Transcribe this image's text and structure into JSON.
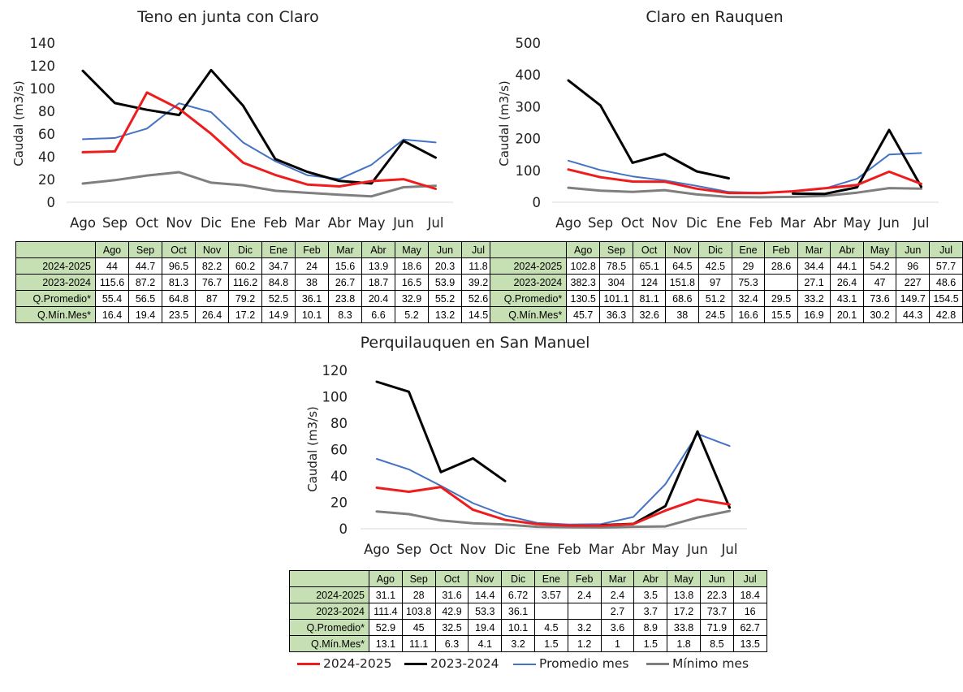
{
  "months": [
    "Ago",
    "Sep",
    "Oct",
    "Nov",
    "Dic",
    "Ene",
    "Feb",
    "Mar",
    "Abr",
    "May",
    "Jun",
    "Jul"
  ],
  "row_labels": [
    "2024-2025",
    "2023-2024",
    "Q.Promedio*",
    "Q.Mín.Mes*"
  ],
  "legend": {
    "s2425": "2024-2025",
    "s2324": "2023-2024",
    "prom": "Promedio mes",
    "min": "Mínimo mes"
  },
  "colors": {
    "s2425": "#ee1c1c",
    "s2324": "#000000",
    "prom": "#4472c4",
    "min": "#7f7f7f",
    "header_bg": "#c6e0b4"
  },
  "chart_data": [
    {
      "type": "line",
      "title": "Teno en junta con Claro",
      "ylabel": "Caudal (m3/s)",
      "ylim": [
        0,
        140
      ],
      "yticks": [
        0,
        20,
        40,
        60,
        80,
        100,
        120,
        140
      ],
      "categories": [
        "Ago",
        "Sep",
        "Oct",
        "Nov",
        "Dic",
        "Ene",
        "Feb",
        "Mar",
        "Abr",
        "May",
        "Jun",
        "Jul"
      ],
      "grid": false,
      "series": [
        {
          "name": "2024-2025",
          "values": [
            44,
            44.7,
            96.5,
            82.2,
            60.2,
            34.7,
            24,
            15.6,
            13.9,
            18.6,
            20.3,
            11.8
          ]
        },
        {
          "name": "2023-2024",
          "values": [
            115.6,
            87.2,
            81.3,
            76.7,
            116.2,
            84.8,
            38,
            26.7,
            18.7,
            16.5,
            53.9,
            39.2
          ]
        },
        {
          "name": "Promedio mes",
          "values": [
            55.4,
            56.5,
            64.8,
            87,
            79.2,
            52.5,
            36.1,
            23.8,
            20.4,
            32.9,
            55.2,
            52.6
          ]
        },
        {
          "name": "Mínimo mes",
          "values": [
            16.4,
            19.4,
            23.5,
            26.4,
            17.2,
            14.9,
            10.1,
            8.3,
            6.6,
            5.2,
            13.2,
            14.5
          ]
        }
      ],
      "table": [
        [
          "44",
          "44.7",
          "96.5",
          "82.2",
          "60.2",
          "34.7",
          "24",
          "15.6",
          "13.9",
          "18.6",
          "20.3",
          "11.8"
        ],
        [
          "115.6",
          "87.2",
          "81.3",
          "76.7",
          "116.2",
          "84.8",
          "38",
          "26.7",
          "18.7",
          "16.5",
          "53.9",
          "39.2"
        ],
        [
          "55.4",
          "56.5",
          "64.8",
          "87",
          "79.2",
          "52.5",
          "36.1",
          "23.8",
          "20.4",
          "32.9",
          "55.2",
          "52.6"
        ],
        [
          "16.4",
          "19.4",
          "23.5",
          "26.4",
          "17.2",
          "14.9",
          "10.1",
          "8.3",
          "6.6",
          "5.2",
          "13.2",
          "14.5"
        ]
      ]
    },
    {
      "type": "line",
      "title": "Claro en Rauquen",
      "ylabel": "Caudal (m3/s)",
      "ylim": [
        0,
        500
      ],
      "yticks": [
        0,
        100,
        200,
        300,
        400,
        500
      ],
      "categories": [
        "Ago",
        "Sep",
        "Oct",
        "Nov",
        "Dic",
        "Ene",
        "Feb",
        "Mar",
        "Abr",
        "May",
        "Jun",
        "Jul"
      ],
      "grid": false,
      "series": [
        {
          "name": "2024-2025",
          "values": [
            102.8,
            78.5,
            65.1,
            64.5,
            42.5,
            29,
            28.6,
            34.4,
            44.1,
            54.2,
            96,
            57.7
          ]
        },
        {
          "name": "2023-2024",
          "values": [
            382.3,
            304,
            124,
            151.8,
            97,
            75.3,
            null,
            27.1,
            26.4,
            47,
            227,
            48.6
          ]
        },
        {
          "name": "Promedio mes",
          "values": [
            130.5,
            101.1,
            81.1,
            68.6,
            51.2,
            32.4,
            29.5,
            33.2,
            43.1,
            73.6,
            149.7,
            154.5
          ]
        },
        {
          "name": "Mínimo mes",
          "values": [
            45.7,
            36.3,
            32.6,
            38,
            24.5,
            16.6,
            15.5,
            16.9,
            20.1,
            30.2,
            44.3,
            42.8
          ]
        }
      ],
      "table": [
        [
          "102.8",
          "78.5",
          "65.1",
          "64.5",
          "42.5",
          "29",
          "28.6",
          "34.4",
          "44.1",
          "54.2",
          "96",
          "57.7"
        ],
        [
          "382.3",
          "304",
          "124",
          "151.8",
          "97",
          "75.3",
          "",
          "27.1",
          "26.4",
          "47",
          "227",
          "48.6"
        ],
        [
          "130.5",
          "101.1",
          "81.1",
          "68.6",
          "51.2",
          "32.4",
          "29.5",
          "33.2",
          "43.1",
          "73.6",
          "149.7",
          "154.5"
        ],
        [
          "45.7",
          "36.3",
          "32.6",
          "38",
          "24.5",
          "16.6",
          "15.5",
          "16.9",
          "20.1",
          "30.2",
          "44.3",
          "42.8"
        ]
      ]
    },
    {
      "type": "line",
      "title": "Perquilauquen en San Manuel",
      "ylabel": "Caudal (m3/s)",
      "ylim": [
        0,
        120
      ],
      "yticks": [
        0,
        20,
        40,
        60,
        80,
        100,
        120
      ],
      "categories": [
        "Ago",
        "Sep",
        "Oct",
        "Nov",
        "Dic",
        "Ene",
        "Feb",
        "Mar",
        "Abr",
        "May",
        "Jun",
        "Jul"
      ],
      "grid": false,
      "series": [
        {
          "name": "2024-2025",
          "values": [
            31.1,
            28,
            31.6,
            14.4,
            6.72,
            3.57,
            2.4,
            2.4,
            3.5,
            13.8,
            22.3,
            18.4
          ]
        },
        {
          "name": "2023-2024",
          "values": [
            111.4,
            103.8,
            42.9,
            53.3,
            36.1,
            null,
            null,
            2.7,
            3.7,
            17.2,
            73.7,
            16
          ]
        },
        {
          "name": "Promedio mes",
          "values": [
            52.9,
            45,
            32.5,
            19.4,
            10.1,
            4.5,
            3.2,
            3.6,
            8.9,
            33.8,
            71.9,
            62.7
          ]
        },
        {
          "name": "Mínimo mes",
          "values": [
            13.1,
            11.1,
            6.3,
            4.1,
            3.2,
            1.5,
            1.2,
            1,
            1.5,
            1.8,
            8.5,
            13.5
          ]
        }
      ],
      "table": [
        [
          "31.1",
          "28",
          "31.6",
          "14.4",
          "6.72",
          "3.57",
          "2.4",
          "2.4",
          "3.5",
          "13.8",
          "22.3",
          "18.4"
        ],
        [
          "111.4",
          "103.8",
          "42.9",
          "53.3",
          "36.1",
          "",
          "",
          "2.7",
          "3.7",
          "17.2",
          "73.7",
          "16"
        ],
        [
          "52.9",
          "45",
          "32.5",
          "19.4",
          "10.1",
          "4.5",
          "3.2",
          "3.6",
          "8.9",
          "33.8",
          "71.9",
          "62.7"
        ],
        [
          "13.1",
          "11.1",
          "6.3",
          "4.1",
          "3.2",
          "1.5",
          "1.2",
          "1",
          "1.5",
          "1.8",
          "8.5",
          "13.5"
        ]
      ]
    }
  ]
}
